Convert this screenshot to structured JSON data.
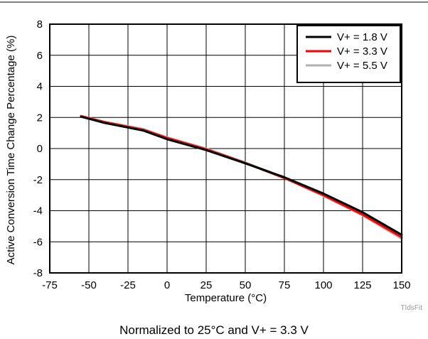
{
  "chart_data": {
    "type": "line",
    "title": "",
    "xlabel": "Temperature (°C)",
    "ylabel": "Active Conversion Time Change Percentage (%)",
    "xlim": [
      -75,
      150
    ],
    "ylim": [
      -8,
      8
    ],
    "x_ticks": [
      -75,
      -50,
      -25,
      0,
      25,
      50,
      75,
      100,
      125,
      150
    ],
    "y_ticks": [
      -8,
      -6,
      -4,
      -2,
      0,
      2,
      4,
      6,
      8
    ],
    "grid": true,
    "legend_position": "top-right",
    "series": [
      {
        "name": "V+ = 1.8 V",
        "color": "#000000",
        "x": [
          -55,
          -40,
          -15,
          0,
          25,
          50,
          75,
          100,
          125,
          150
        ],
        "y": [
          2.05,
          1.65,
          1.15,
          0.6,
          -0.1,
          -0.95,
          -1.85,
          -2.9,
          -4.1,
          -5.55
        ]
      },
      {
        "name": "V+ = 3.3 V",
        "color": "#ff0000",
        "x": [
          -55,
          -40,
          -15,
          0,
          25,
          50,
          75,
          100,
          125,
          150
        ],
        "y": [
          2.08,
          1.7,
          1.2,
          0.68,
          -0.05,
          -0.93,
          -1.9,
          -3.0,
          -4.25,
          -5.7
        ]
      },
      {
        "name": "V+ = 5.5 V",
        "color": "#b0b0b0",
        "x": [
          -55,
          -40,
          -15,
          0,
          25,
          50,
          75,
          100,
          125,
          150
        ],
        "y": [
          2.1,
          1.72,
          1.25,
          0.72,
          0.0,
          -0.9,
          -1.88,
          -3.05,
          -4.3,
          -5.8
        ]
      }
    ]
  },
  "caption": "Normalized to 25°C and V+ = 3.3 V",
  "watermark": "TIdsFit"
}
